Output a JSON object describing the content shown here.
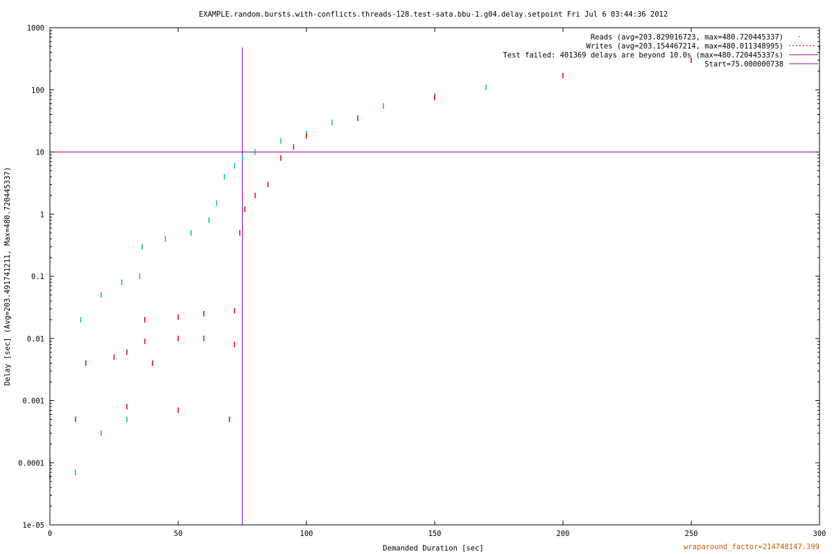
{
  "chart_data": {
    "type": "scatter",
    "title": "EXAMPLE.random.bursts.with-conflicts.threads-128.test-sata.bbu-1.g04.delay.setpoint Fri Jul  6 03:44:36 2012",
    "xlabel": "Demanded Duration [sec]",
    "ylabel": "Delay [sec]  (Avg=203.491741211, Max=480.720445337)",
    "xlim": [
      0,
      300
    ],
    "ylim": [
      1e-05,
      1000
    ],
    "yscale": "log",
    "x_ticks": [
      0,
      50,
      100,
      150,
      200,
      250,
      300
    ],
    "x_tick_labels": [
      "0",
      "50",
      "100",
      "150",
      "200",
      "250",
      "300"
    ],
    "y_ticks": [
      1e-05,
      0.0001,
      0.001,
      0.01,
      0.1,
      1,
      10,
      100,
      1000
    ],
    "y_tick_labels": [
      "1e-05",
      "0.0001",
      "0.001",
      "0.01",
      "0.1",
      "1",
      "10",
      "100",
      "1000"
    ],
    "grid": false,
    "legend_position": "top-right",
    "series": [
      {
        "name": "Reads  (avg=203.829016723, max=480.720445337)",
        "color": "#00b4c8",
        "style": "points",
        "description_points": [
          [
            0,
            0.0001
          ],
          [
            10,
            7e-05
          ],
          [
            20,
            0.0003
          ],
          [
            30,
            0.0005
          ],
          [
            12,
            0.02
          ],
          [
            20,
            0.05
          ],
          [
            28,
            0.08
          ],
          [
            35,
            0.1
          ],
          [
            36,
            0.3
          ],
          [
            45,
            0.4
          ],
          [
            55,
            0.5
          ],
          [
            62,
            0.8
          ],
          [
            65,
            1.5
          ],
          [
            68,
            4
          ],
          [
            72,
            6
          ],
          [
            75,
            8
          ],
          [
            80,
            10
          ],
          [
            90,
            15
          ],
          [
            100,
            20
          ],
          [
            110,
            30
          ],
          [
            130,
            55
          ],
          [
            150,
            80
          ],
          [
            170,
            110
          ]
        ]
      },
      {
        "name": "Writes  (avg=203.154467214, max=480.011348995)",
        "color": "#e00000",
        "style": "points",
        "description_points": [
          [
            0,
            6e-05
          ],
          [
            10,
            0.0005
          ],
          [
            30,
            0.0008
          ],
          [
            50,
            0.0007
          ],
          [
            70,
            0.0005
          ],
          [
            14,
            0.004
          ],
          [
            25,
            0.005
          ],
          [
            30,
            0.006
          ],
          [
            40,
            0.004
          ],
          [
            37,
            0.009
          ],
          [
            50,
            0.01
          ],
          [
            60,
            0.01
          ],
          [
            72,
            0.008
          ],
          [
            37,
            0.02
          ],
          [
            50,
            0.022
          ],
          [
            60,
            0.025
          ],
          [
            72,
            0.028
          ],
          [
            74,
            0.5
          ],
          [
            76,
            1.2
          ],
          [
            80,
            2
          ],
          [
            85,
            3
          ],
          [
            90,
            8
          ],
          [
            95,
            12
          ],
          [
            100,
            18
          ],
          [
            120,
            35
          ],
          [
            150,
            75
          ],
          [
            200,
            170
          ],
          [
            250,
            300
          ],
          [
            300,
            480
          ]
        ]
      }
    ],
    "reference_lines": [
      {
        "orientation": "horizontal",
        "y": 10,
        "name": "Test failed: 401369 delays are beyond 10.0s (max=480.720445337s)",
        "color": "#b00070"
      },
      {
        "orientation": "vertical",
        "x": 75.000000738,
        "y_top": 480,
        "name": "Start=75.000000738",
        "color": "#8000d0"
      }
    ]
  },
  "footer_note": "wraparound_factor=214748147.399"
}
